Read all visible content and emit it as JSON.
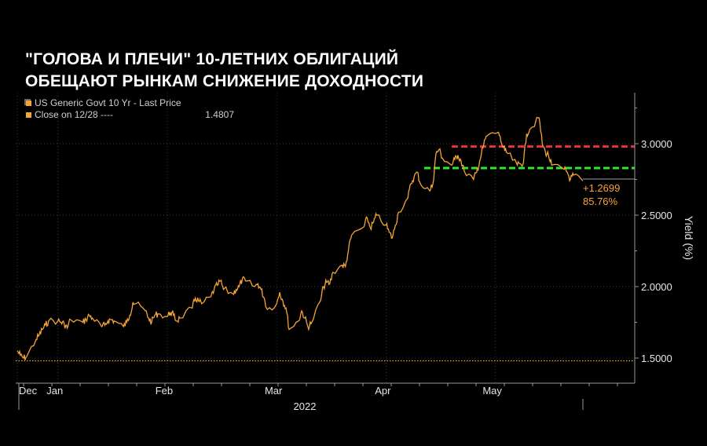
{
  "title": {
    "line1": "\"ГОЛОВА И ПЛЕЧИ\" 10-ЛЕТНИХ ОБЛИГАЦИЙ",
    "line2": "ОБЕЩАЮТ РЫНКАМ СНИЖЕНИЕ ДОХОДНОСТИ"
  },
  "legend": {
    "series_label": "US Generic Govt 10 Yr - Last Price",
    "close_label": "Close on 12/28 ----",
    "close_value": "1.4807"
  },
  "annotations": {
    "change": "+1.2699",
    "change_pct": "85.76%"
  },
  "colors": {
    "background": "#000000",
    "series": "#f5a43a",
    "resistance": "#e8323c",
    "support": "#2ee830",
    "grid": "#3a3a3a",
    "axis": "#9a9a9a"
  },
  "chart_data": {
    "type": "line",
    "title": "",
    "xlabel": "",
    "ylabel": "Yield (%)",
    "ylim": [
      1.3,
      3.3
    ],
    "y_ticks": [
      "1.5000",
      "2.0000",
      "2.5000",
      "3.0000"
    ],
    "y_tick_values": [
      1.5,
      2.0,
      2.5,
      3.0
    ],
    "x_tick_labels": [
      "Dec",
      "Jan",
      "Feb",
      "Mar",
      "Apr",
      "May"
    ],
    "x_tick_dates": [
      "2021-12-28",
      "2022-01-10",
      "2022-02-14",
      "2022-03-21",
      "2022-04-25",
      "2022-05-30"
    ],
    "year_label": "2022",
    "grid": true,
    "legend_position": "top-left",
    "close_reference": 1.4807,
    "resistance_level": 2.98,
    "support_level": 2.83,
    "series": [
      {
        "name": "US Generic Govt 10 Yr - Last Price",
        "x": [
          "2021-12-28",
          "2021-12-29",
          "2021-12-30",
          "2021-12-31",
          "2022-01-03",
          "2022-01-04",
          "2022-01-05",
          "2022-01-06",
          "2022-01-07",
          "2022-01-10",
          "2022-01-11",
          "2022-01-12",
          "2022-01-13",
          "2022-01-14",
          "2022-01-18",
          "2022-01-19",
          "2022-01-20",
          "2022-01-21",
          "2022-01-24",
          "2022-01-25",
          "2022-01-26",
          "2022-01-27",
          "2022-01-28",
          "2022-01-31",
          "2022-02-01",
          "2022-02-02",
          "2022-02-03",
          "2022-02-04",
          "2022-02-07",
          "2022-02-08",
          "2022-02-09",
          "2022-02-10",
          "2022-02-11",
          "2022-02-14",
          "2022-02-15",
          "2022-02-16",
          "2022-02-17",
          "2022-02-18",
          "2022-02-22",
          "2022-02-23",
          "2022-02-24",
          "2022-02-25",
          "2022-02-28",
          "2022-03-01",
          "2022-03-02",
          "2022-03-03",
          "2022-03-04",
          "2022-03-07",
          "2022-03-08",
          "2022-03-09",
          "2022-03-10",
          "2022-03-11",
          "2022-03-14",
          "2022-03-15",
          "2022-03-16",
          "2022-03-17",
          "2022-03-18",
          "2022-03-21",
          "2022-03-22",
          "2022-03-23",
          "2022-03-24",
          "2022-03-25",
          "2022-03-28",
          "2022-03-29",
          "2022-03-30",
          "2022-03-31",
          "2022-04-01",
          "2022-04-04",
          "2022-04-05",
          "2022-04-06",
          "2022-04-07",
          "2022-04-08",
          "2022-04-11",
          "2022-04-12",
          "2022-04-13",
          "2022-04-14",
          "2022-04-18",
          "2022-04-19",
          "2022-04-20",
          "2022-04-21",
          "2022-04-22",
          "2022-04-25",
          "2022-04-26",
          "2022-04-27",
          "2022-04-28",
          "2022-04-29",
          "2022-05-02",
          "2022-05-03",
          "2022-05-04",
          "2022-05-05",
          "2022-05-06",
          "2022-05-09",
          "2022-05-10",
          "2022-05-11",
          "2022-05-12",
          "2022-05-13",
          "2022-05-16",
          "2022-05-17",
          "2022-05-18",
          "2022-05-19",
          "2022-05-20",
          "2022-05-23",
          "2022-05-24",
          "2022-05-25",
          "2022-05-26",
          "2022-05-27",
          "2022-05-31",
          "2022-06-01",
          "2022-06-02",
          "2022-06-03",
          "2022-06-06",
          "2022-06-07",
          "2022-06-08",
          "2022-06-09",
          "2022-06-10",
          "2022-06-13",
          "2022-06-14",
          "2022-06-15",
          "2022-06-16",
          "2022-06-17",
          "2022-06-21",
          "2022-06-22",
          "2022-06-23",
          "2022-06-24",
          "2022-06-27"
        ],
        "values": [
          1.55,
          1.52,
          1.5,
          1.51,
          1.63,
          1.66,
          1.7,
          1.73,
          1.76,
          1.76,
          1.75,
          1.74,
          1.71,
          1.77,
          1.75,
          1.77,
          1.8,
          1.78,
          1.72,
          1.73,
          1.76,
          1.77,
          1.76,
          1.72,
          1.75,
          1.8,
          1.89,
          1.88,
          1.83,
          1.78,
          1.75,
          1.8,
          1.81,
          1.79,
          1.82,
          1.8,
          1.76,
          1.78,
          1.85,
          1.92,
          1.9,
          1.88,
          1.93,
          1.98,
          2.01,
          2.04,
          1.98,
          1.95,
          1.98,
          2.0,
          2.05,
          2.04,
          2.0,
          2.02,
          1.98,
          1.92,
          1.84,
          1.88,
          1.96,
          1.9,
          1.85,
          1.7,
          1.76,
          1.83,
          1.78,
          1.72,
          1.74,
          1.9,
          2.0,
          2.03,
          2.02,
          2.1,
          2.15,
          2.14,
          2.26,
          2.36,
          2.42,
          2.48,
          2.41,
          2.45,
          2.5,
          2.43,
          2.38,
          2.34,
          2.43,
          2.52,
          2.62,
          2.72,
          2.77,
          2.8,
          2.72,
          2.67,
          2.72,
          2.93,
          2.96,
          2.9,
          2.85,
          2.89,
          2.92,
          2.88,
          2.81,
          2.75,
          2.8,
          2.88,
          2.97,
          3.05,
          3.08,
          3.0,
          2.95,
          2.93,
          2.85,
          2.86,
          2.87,
          3.07,
          3.1,
          3.18,
          3.0,
          2.94,
          2.92,
          2.85,
          2.82,
          2.8,
          2.75,
          2.78,
          2.74
        ]
      }
    ]
  }
}
